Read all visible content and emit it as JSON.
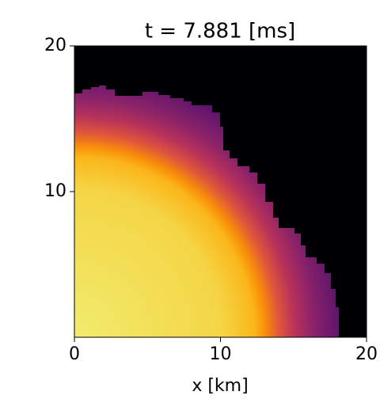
{
  "chart_data": {
    "type": "heatmap",
    "title": "t = 7.881 [ms]",
    "xlabel": "x [km]",
    "xlim": [
      0,
      20
    ],
    "ylim": [
      0,
      20
    ],
    "xticks": [
      0,
      10,
      20
    ],
    "yticks": [
      10,
      20
    ]
  }
}
